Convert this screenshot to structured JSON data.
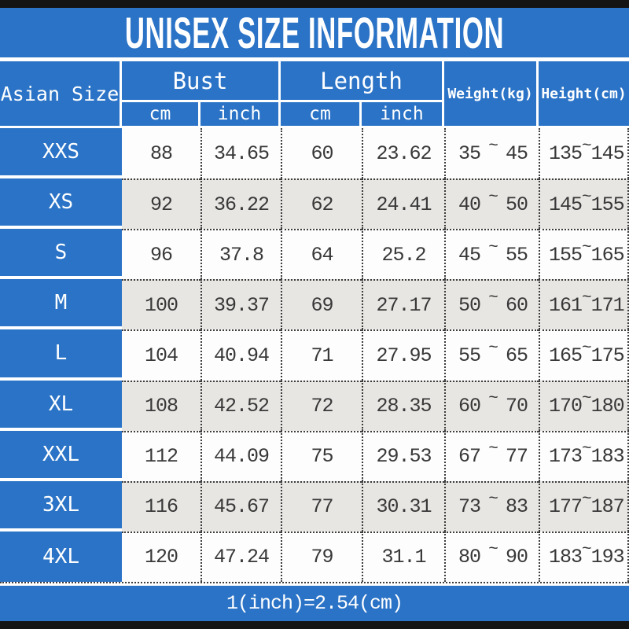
{
  "title": "UNISEX SIZE INFORMATION",
  "table": {
    "size_header": "Asian Size",
    "bust_header": "Bust",
    "length_header": "Length",
    "cm_label": "cm",
    "inch_label": "inch",
    "weight_header": "Weight(kg)",
    "height_header": "Height(cm)",
    "tilde": "~",
    "rows": [
      {
        "size": "XXS",
        "bust_cm": "88",
        "bust_inch": "34.65",
        "length_cm": "60",
        "length_inch": "23.62",
        "weight_min": "35",
        "weight_max": "45",
        "height_min": "135",
        "height_max": "145"
      },
      {
        "size": "XS",
        "bust_cm": "92",
        "bust_inch": "36.22",
        "length_cm": "62",
        "length_inch": "24.41",
        "weight_min": "40",
        "weight_max": "50",
        "height_min": "145",
        "height_max": "155"
      },
      {
        "size": "S",
        "bust_cm": "96",
        "bust_inch": "37.8",
        "length_cm": "64",
        "length_inch": "25.2",
        "weight_min": "45",
        "weight_max": "55",
        "height_min": "155",
        "height_max": "165"
      },
      {
        "size": "M",
        "bust_cm": "100",
        "bust_inch": "39.37",
        "length_cm": "69",
        "length_inch": "27.17",
        "weight_min": "50",
        "weight_max": "60",
        "height_min": "161",
        "height_max": "171"
      },
      {
        "size": "L",
        "bust_cm": "104",
        "bust_inch": "40.94",
        "length_cm": "71",
        "length_inch": "27.95",
        "weight_min": "55",
        "weight_max": "65",
        "height_min": "165",
        "height_max": "175"
      },
      {
        "size": "XL",
        "bust_cm": "108",
        "bust_inch": "42.52",
        "length_cm": "72",
        "length_inch": "28.35",
        "weight_min": "60",
        "weight_max": "70",
        "height_min": "170",
        "height_max": "180"
      },
      {
        "size": "XXL",
        "bust_cm": "112",
        "bust_inch": "44.09",
        "length_cm": "75",
        "length_inch": "29.53",
        "weight_min": "67",
        "weight_max": "77",
        "height_min": "173",
        "height_max": "183"
      },
      {
        "size": "3XL",
        "bust_cm": "116",
        "bust_inch": "45.67",
        "length_cm": "77",
        "length_inch": "30.31",
        "weight_min": "73",
        "weight_max": "83",
        "height_min": "177",
        "height_max": "187"
      },
      {
        "size": "4XL",
        "bust_cm": "120",
        "bust_inch": "47.24",
        "length_cm": "79",
        "length_inch": "31.1",
        "weight_min": "80",
        "weight_max": "90",
        "height_min": "183",
        "height_max": "193"
      }
    ]
  },
  "footer": "1(inch)=2.54(cm)",
  "colors": {
    "blue": "#2b73c6",
    "row_alt": "#e8e6e3",
    "bar": "#141414"
  },
  "chart_data": {
    "type": "table",
    "title": "UNISEX SIZE INFORMATION",
    "columns": [
      "Asian Size",
      "Bust cm",
      "Bust inch",
      "Length cm",
      "Length inch",
      "Weight(kg)",
      "Height(cm)"
    ],
    "rows": [
      [
        "XXS",
        88,
        34.65,
        60,
        23.62,
        "35~45",
        "135~145"
      ],
      [
        "XS",
        92,
        36.22,
        62,
        24.41,
        "40~50",
        "145~155"
      ],
      [
        "S",
        96,
        37.8,
        64,
        25.2,
        "45~55",
        "155~165"
      ],
      [
        "M",
        100,
        39.37,
        69,
        27.17,
        "50~60",
        "161~171"
      ],
      [
        "L",
        104,
        40.94,
        71,
        27.95,
        "55~65",
        "165~175"
      ],
      [
        "XL",
        108,
        42.52,
        72,
        28.35,
        "60~70",
        "170~180"
      ],
      [
        "XXL",
        112,
        44.09,
        75,
        29.53,
        "67~77",
        "173~183"
      ],
      [
        "3XL",
        116,
        45.67,
        77,
        30.31,
        "73~83",
        "177~187"
      ],
      [
        "4XL",
        120,
        47.24,
        79,
        31.1,
        "80~90",
        "183~193"
      ]
    ],
    "footnote": "1(inch)=2.54(cm)",
    "layout": {
      "header_fill": "#2b73c6",
      "alt_row_fill": "#e8e6e3",
      "grid": "dotted"
    }
  }
}
